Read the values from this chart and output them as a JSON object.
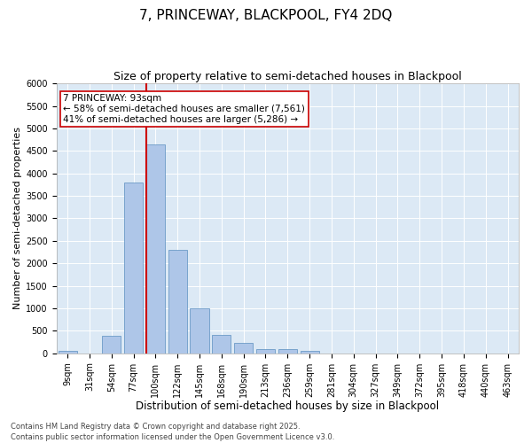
{
  "title1": "7, PRINCEWAY, BLACKPOOL, FY4 2DQ",
  "title2": "Size of property relative to semi-detached houses in Blackpool",
  "xlabel": "Distribution of semi-detached houses by size in Blackpool",
  "ylabel": "Number of semi-detached properties",
  "categories": [
    "9sqm",
    "31sqm",
    "54sqm",
    "77sqm",
    "100sqm",
    "122sqm",
    "145sqm",
    "168sqm",
    "190sqm",
    "213sqm",
    "236sqm",
    "259sqm",
    "281sqm",
    "304sqm",
    "327sqm",
    "349sqm",
    "372sqm",
    "395sqm",
    "418sqm",
    "440sqm",
    "463sqm"
  ],
  "values": [
    50,
    0,
    380,
    3800,
    4650,
    2300,
    1000,
    400,
    230,
    100,
    100,
    50,
    0,
    0,
    0,
    0,
    0,
    0,
    0,
    0,
    0
  ],
  "bar_color": "#aec6e8",
  "bar_edge_color": "#5a8fc0",
  "vline_color": "#cc0000",
  "annotation_text": "7 PRINCEWAY: 93sqm\n← 58% of semi-detached houses are smaller (7,561)\n41% of semi-detached houses are larger (5,286) →",
  "annotation_box_color": "#cc0000",
  "annotation_text_color": "#000000",
  "ylim": [
    0,
    6000
  ],
  "yticks": [
    0,
    500,
    1000,
    1500,
    2000,
    2500,
    3000,
    3500,
    4000,
    4500,
    5000,
    5500,
    6000
  ],
  "background_color": "#dce9f5",
  "footer_text": "Contains HM Land Registry data © Crown copyright and database right 2025.\nContains public sector information licensed under the Open Government Licence v3.0.",
  "title1_fontsize": 11,
  "title2_fontsize": 9,
  "xlabel_fontsize": 8.5,
  "ylabel_fontsize": 8,
  "tick_fontsize": 7,
  "annotation_fontsize": 7.5,
  "footer_fontsize": 6
}
